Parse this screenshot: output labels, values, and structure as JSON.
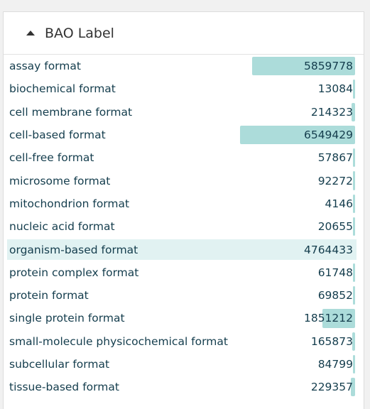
{
  "panel": {
    "title": "BAO Label",
    "expanded": true,
    "caret_icon": "caret-up-icon"
  },
  "colors": {
    "bar": "#acdcda",
    "selected_row": "#e1f2f2",
    "text": "#143d4d"
  },
  "max_count": 6549429,
  "facets": [
    {
      "label": "assay format",
      "count": 5859778,
      "count_text": "5859778",
      "selected": false
    },
    {
      "label": "biochemical format",
      "count": 13084,
      "count_text": "13084",
      "selected": false
    },
    {
      "label": "cell membrane format",
      "count": 214323,
      "count_text": "214323",
      "selected": false
    },
    {
      "label": "cell-based format",
      "count": 6549429,
      "count_text": "6549429",
      "selected": false
    },
    {
      "label": "cell-free format",
      "count": 57867,
      "count_text": "57867",
      "selected": false
    },
    {
      "label": "microsome format",
      "count": 92272,
      "count_text": "92272",
      "selected": false
    },
    {
      "label": "mitochondrion format",
      "count": 4146,
      "count_text": "4146",
      "selected": false
    },
    {
      "label": "nucleic acid format",
      "count": 20655,
      "count_text": "20655",
      "selected": false
    },
    {
      "label": "organism-based format",
      "count": 4764433,
      "count_text": "4764433",
      "selected": true
    },
    {
      "label": "protein complex format",
      "count": 61748,
      "count_text": "61748",
      "selected": false
    },
    {
      "label": "protein format",
      "count": 69852,
      "count_text": "69852",
      "selected": false
    },
    {
      "label": "single protein format",
      "count": 1851212,
      "count_text": "1851212",
      "selected": false
    },
    {
      "label": "small-molecule physicochemical format",
      "count": 165873,
      "count_text": "165873",
      "selected": false
    },
    {
      "label": "subcellular format",
      "count": 84799,
      "count_text": "84799",
      "selected": false
    },
    {
      "label": "tissue-based format",
      "count": 229357,
      "count_text": "229357",
      "selected": false
    }
  ]
}
